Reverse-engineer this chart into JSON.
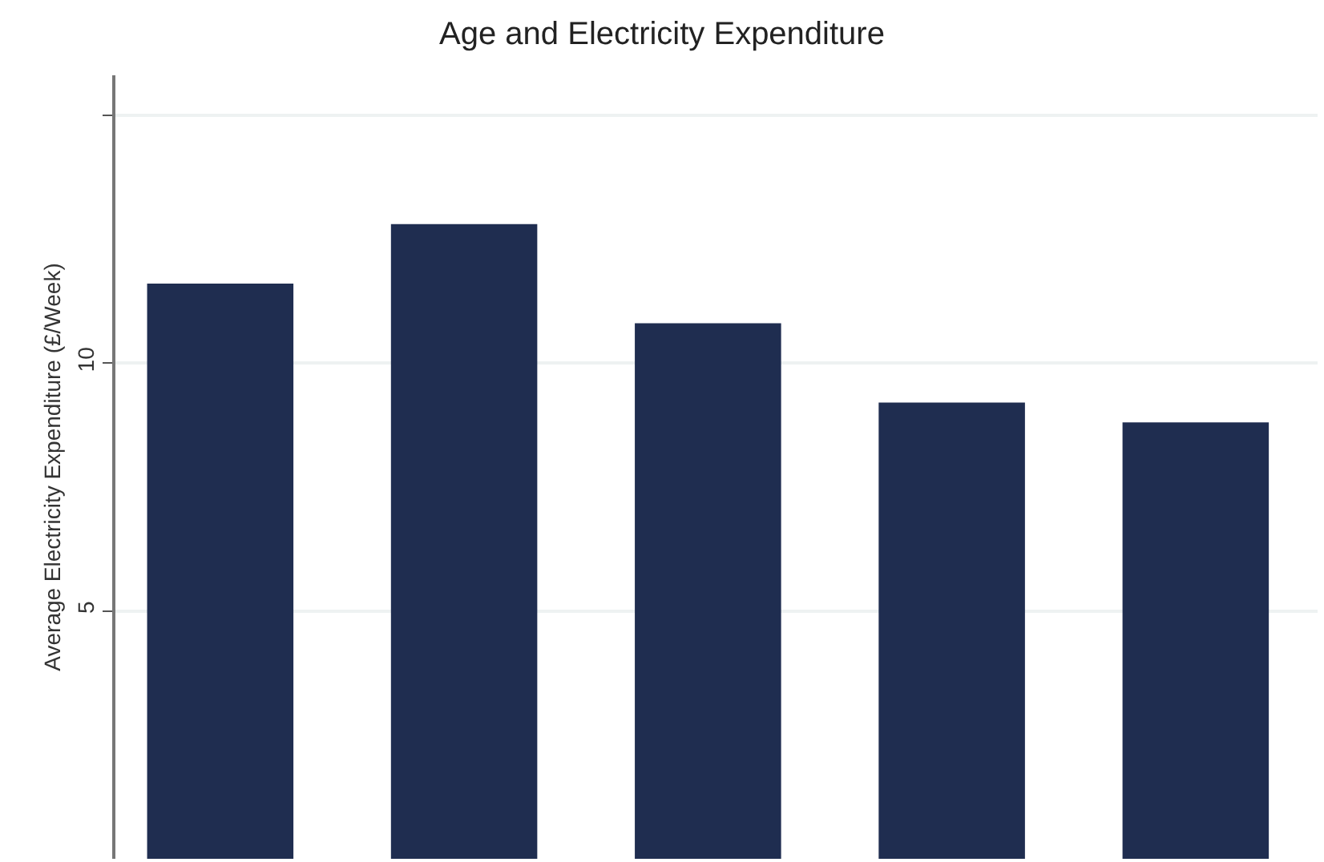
{
  "chart_data": {
    "type": "bar",
    "title": "Age and Electricity Expenditure",
    "ylabel": "Average Electricity Expenditure (£/Week)",
    "categories": [
      null,
      null,
      null,
      null,
      null
    ],
    "values": [
      11.6,
      12.8,
      10.8,
      9.2,
      8.8
    ],
    "color": "#1f2d50",
    "ylim": [
      0,
      15.8
    ],
    "yticks": [
      5,
      10,
      {
        "value": 15,
        "label": null
      }
    ],
    "grid": "y",
    "tick_labels": "y"
  }
}
